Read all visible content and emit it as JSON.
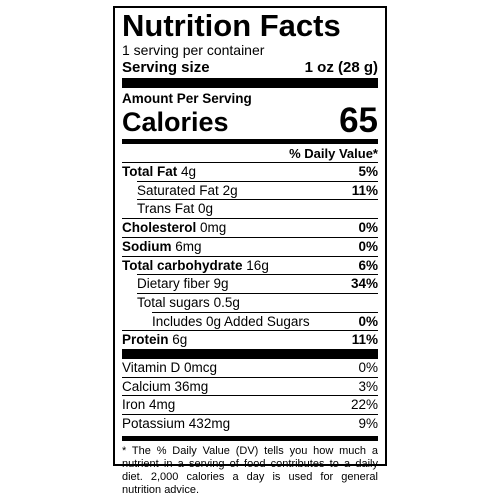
{
  "title": "Nutrition Facts",
  "servings": "1 serving per container",
  "serving_size": {
    "label": "Serving size",
    "value": "1 oz (28 g)"
  },
  "amount_per_serving": "Amount Per Serving",
  "calories": {
    "label": "Calories",
    "value": "65"
  },
  "dv_header": "% Daily Value*",
  "nutrients": [
    {
      "name": "Total Fat",
      "amount": "4g",
      "dv": "5%",
      "bold": true,
      "indent": 0
    },
    {
      "name": "Saturated Fat",
      "amount": "2g",
      "dv": "11%",
      "bold": false,
      "indent": 1
    },
    {
      "name": "Trans Fat",
      "amount": "0g",
      "dv": null,
      "bold": false,
      "indent": 1
    },
    {
      "name": "Cholesterol",
      "amount": "0mg",
      "dv": "0%",
      "bold": true,
      "indent": 0
    },
    {
      "name": "Sodium",
      "amount": "6mg",
      "dv": "0%",
      "bold": true,
      "indent": 0
    },
    {
      "name": "Total carbohydrate",
      "amount": "16g",
      "dv": "6%",
      "bold": true,
      "indent": 0
    },
    {
      "name": "Dietary fiber",
      "amount": "9g",
      "dv": "34%",
      "bold": false,
      "indent": 1
    },
    {
      "name": "Total sugars",
      "amount": "0.5g",
      "dv": null,
      "bold": false,
      "indent": 1
    },
    {
      "name": "Includes 0g Added Sugars",
      "amount": null,
      "dv": "0%",
      "bold": false,
      "indent": 2
    },
    {
      "name": "Protein",
      "amount": "6g",
      "dv": "11%",
      "bold": true,
      "indent": 0
    }
  ],
  "vitamins": [
    {
      "name": "Vitamin D",
      "amount": "0mcg",
      "dv": "0%"
    },
    {
      "name": "Calcium",
      "amount": "36mg",
      "dv": "3%"
    },
    {
      "name": "Iron",
      "amount": "4mg",
      "dv": "22%"
    },
    {
      "name": "Potassium",
      "amount": "432mg",
      "dv": "9%"
    }
  ],
  "footnote": "* The % Daily Value (DV) tells you how much a nutrient in a serving of food contributes to a daily diet. 2,000 calories a day is used for general nutrition advice."
}
